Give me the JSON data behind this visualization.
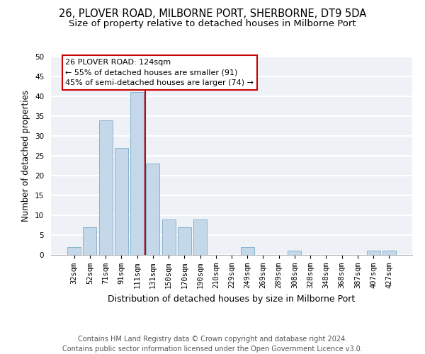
{
  "title": "26, PLOVER ROAD, MILBORNE PORT, SHERBORNE, DT9 5DA",
  "subtitle": "Size of property relative to detached houses in Milborne Port",
  "xlabel": "Distribution of detached houses by size in Milborne Port",
  "ylabel": "Number of detached properties",
  "bar_color": "#c5d8ea",
  "bar_edge_color": "#7aadc8",
  "categories": [
    "32sqm",
    "52sqm",
    "71sqm",
    "91sqm",
    "111sqm",
    "131sqm",
    "150sqm",
    "170sqm",
    "190sqm",
    "210sqm",
    "229sqm",
    "249sqm",
    "269sqm",
    "289sqm",
    "308sqm",
    "328sqm",
    "348sqm",
    "368sqm",
    "387sqm",
    "407sqm",
    "427sqm"
  ],
  "values": [
    2,
    7,
    34,
    27,
    41,
    23,
    9,
    7,
    9,
    0,
    0,
    2,
    0,
    0,
    1,
    0,
    0,
    0,
    0,
    1,
    1
  ],
  "ylim": [
    0,
    50
  ],
  "yticks": [
    0,
    5,
    10,
    15,
    20,
    25,
    30,
    35,
    40,
    45,
    50
  ],
  "vline_x": 4.5,
  "vline_color": "#cc0000",
  "annotation_title": "26 PLOVER ROAD: 124sqm",
  "annotation_line1": "← 55% of detached houses are smaller (91)",
  "annotation_line2": "45% of semi-detached houses are larger (74) →",
  "annotation_box_color": "#cc0000",
  "footer_line1": "Contains HM Land Registry data © Crown copyright and database right 2024.",
  "footer_line2": "Contains public sector information licensed under the Open Government Licence v3.0.",
  "background_color": "#eef2f7",
  "grid_color": "#ffffff",
  "title_fontsize": 10.5,
  "subtitle_fontsize": 9.5,
  "xlabel_fontsize": 9,
  "ylabel_fontsize": 8.5,
  "tick_fontsize": 7.5,
  "annotation_fontsize": 8,
  "footer_fontsize": 7
}
